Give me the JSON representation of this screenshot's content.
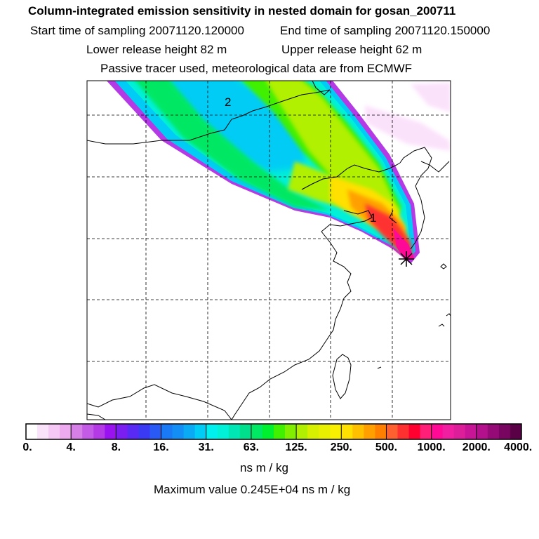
{
  "header": {
    "title": "Column-integrated emission sensitivity in nested domain for gosan_200711",
    "start_label": "Start time of sampling 20071120.120000",
    "end_label": "End time of sampling 20071120.150000",
    "lower_label": "Lower release height   82 m",
    "upper_label": "Upper release height   62 m",
    "tracer_label": "Passive tracer used, meteorological data are from ECMWF"
  },
  "map": {
    "labels": {
      "one": "1",
      "two": "2"
    },
    "source_marker": "star-marker"
  },
  "colorbar": {
    "ticks": [
      "0.",
      "4.",
      "8.",
      "16.",
      "31.",
      "63.",
      "125.",
      "250.",
      "500.",
      "1000.",
      "2000.",
      "4000."
    ],
    "colors": [
      "#ffffff",
      "#fbe2fb",
      "#f5c8f5",
      "#eeaaee",
      "#d67fe6",
      "#c45be6",
      "#b43ae6",
      "#9b12f0",
      "#7a1ef2",
      "#5a2af5",
      "#3a3af5",
      "#2a5af5",
      "#1a7af5",
      "#128ef5",
      "#0aaaf5",
      "#00ccf5",
      "#00f0f0",
      "#00f0d8",
      "#00e6b4",
      "#00e08c",
      "#00e864",
      "#00f030",
      "#40f000",
      "#80f000",
      "#b0f000",
      "#d6f000",
      "#e8f000",
      "#f8f000",
      "#ffe000",
      "#ffc000",
      "#ffa000",
      "#ff8000",
      "#ff6030",
      "#ff3030",
      "#ff0030",
      "#ff1e78",
      "#ff0a96",
      "#f01ea0",
      "#dc1e9b",
      "#c81496",
      "#b40f8c",
      "#960a78",
      "#78055f",
      "#5a0046"
    ],
    "unit": "ns m / kg",
    "max_text": "Maximum value  0.245E+04 ns m / kg"
  }
}
